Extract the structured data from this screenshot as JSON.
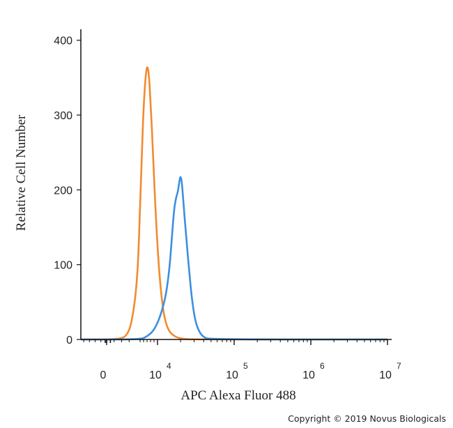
{
  "chart_data": {
    "type": "line",
    "title": "",
    "xlabel": "APC Alexa Fluor 488",
    "ylabel": "Relative Cell Number",
    "x_scale": "biexponential",
    "x_ticks": [
      {
        "value": 0,
        "base": "0",
        "exp": ""
      },
      {
        "value": 10000,
        "base": "10",
        "exp": "4"
      },
      {
        "value": 100000,
        "base": "10",
        "exp": "5"
      },
      {
        "value": 1000000,
        "base": "10",
        "exp": "6"
      },
      {
        "value": 10000000,
        "base": "10",
        "exp": "7"
      }
    ],
    "y_ticks": [
      0,
      100,
      200,
      300,
      400
    ],
    "ylim": [
      0,
      410
    ],
    "grid": false,
    "series": [
      {
        "color": "#f28a2e",
        "points": [
          [
            -9000,
            0
          ],
          [
            1500,
            0
          ],
          [
            2800,
            5
          ],
          [
            3500,
            30
          ],
          [
            4200,
            80
          ],
          [
            4900,
            160
          ],
          [
            5500,
            250
          ],
          [
            6100,
            320
          ],
          [
            6700,
            358
          ],
          [
            7100,
            366
          ],
          [
            7500,
            356
          ],
          [
            8000,
            318
          ],
          [
            8700,
            250
          ],
          [
            9500,
            165
          ],
          [
            10500,
            90
          ],
          [
            11800,
            38
          ],
          [
            13500,
            14
          ],
          [
            16000,
            5
          ],
          [
            20000,
            1
          ],
          [
            30000,
            0
          ],
          [
            10000000,
            0
          ]
        ]
      },
      {
        "color": "#3b8fe0",
        "points": [
          [
            -9000,
            0
          ],
          [
            5000,
            0
          ],
          [
            7000,
            4
          ],
          [
            9000,
            12
          ],
          [
            11000,
            32
          ],
          [
            13000,
            60
          ],
          [
            14500,
            100
          ],
          [
            15500,
            140
          ],
          [
            16500,
            175
          ],
          [
            17500,
            190
          ],
          [
            18500,
            198
          ],
          [
            19500,
            215
          ],
          [
            20000,
            218
          ],
          [
            20700,
            212
          ],
          [
            21500,
            190
          ],
          [
            22500,
            165
          ],
          [
            24000,
            130
          ],
          [
            26000,
            90
          ],
          [
            28000,
            55
          ],
          [
            31000,
            25
          ],
          [
            35000,
            10
          ],
          [
            40000,
            3
          ],
          [
            48000,
            0
          ],
          [
            10000000,
            0
          ]
        ]
      }
    ]
  },
  "copyright": "Copyright © 2019 Novus Biologicals"
}
